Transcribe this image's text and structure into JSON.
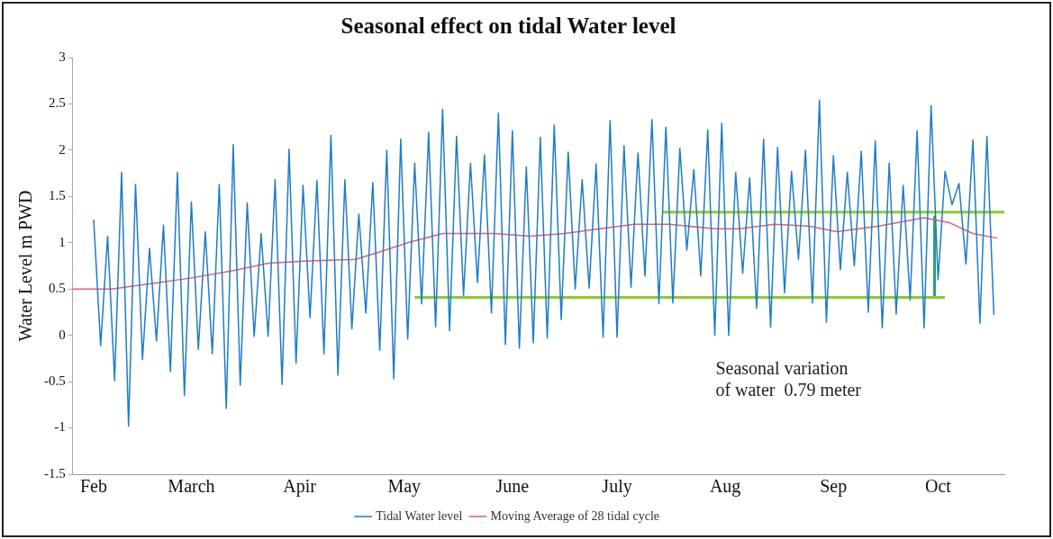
{
  "chart_data": {
    "type": "line",
    "title": "Seasonal effect on tidal Water level",
    "ylabel": "Water Level m PWD",
    "xlim": [
      "--01-26",
      "--10-20"
    ],
    "xticks": [
      {
        "value": "--02-01",
        "label": "Feb"
      },
      {
        "value": "--03-01",
        "label": "March"
      },
      {
        "value": "--04-01",
        "label": "Apir"
      },
      {
        "value": "--05-01",
        "label": "May"
      },
      {
        "value": "--06-01",
        "label": "June"
      },
      {
        "value": "--07-01",
        "label": "July"
      },
      {
        "value": "--08-01",
        "label": "Aug"
      },
      {
        "value": "--09-01",
        "label": "Sep"
      },
      {
        "value": "--10-01",
        "label": "Oct"
      }
    ],
    "ylim": [
      -1.5,
      3
    ],
    "yticks": [
      -1.5,
      -1,
      -0.5,
      0,
      0.5,
      1,
      1.5,
      2,
      2.5,
      3
    ],
    "grid": false,
    "legend": "bottom",
    "marker": "none",
    "line_style": "solid",
    "series": [
      {
        "name": "Tidal Water level",
        "color": "#1f7cc8",
        "x": [
          "--02-01",
          "--02-03",
          "--02-05",
          "--02-07",
          "--02-09",
          "--02-11",
          "--02-13",
          "--02-15",
          "--02-17",
          "--02-19",
          "--02-21",
          "--02-23",
          "--02-25",
          "--02-27",
          "--03-01",
          "--03-03",
          "--03-05",
          "--03-07",
          "--03-09",
          "--03-11",
          "--03-13",
          "--03-15",
          "--03-17",
          "--03-19",
          "--03-21",
          "--03-23",
          "--03-25",
          "--03-27",
          "--03-29",
          "--03-31",
          "--04-02",
          "--04-04",
          "--04-06",
          "--04-08",
          "--04-10",
          "--04-12",
          "--04-14",
          "--04-16",
          "--04-18",
          "--04-20",
          "--04-22",
          "--04-24",
          "--04-26",
          "--04-28",
          "--04-30",
          "--05-02",
          "--05-04",
          "--05-06",
          "--05-08",
          "--05-10",
          "--05-12",
          "--05-14",
          "--05-16",
          "--05-18",
          "--05-20",
          "--05-22",
          "--05-24",
          "--05-26",
          "--05-28",
          "--05-30",
          "--06-01",
          "--06-03",
          "--06-05",
          "--06-07",
          "--06-09",
          "--06-11",
          "--06-13",
          "--06-15",
          "--06-17",
          "--06-19",
          "--06-21",
          "--06-23",
          "--06-25",
          "--06-27",
          "--06-29",
          "--07-01",
          "--07-03",
          "--07-05",
          "--07-07",
          "--07-09",
          "--07-11",
          "--07-13",
          "--07-15",
          "--07-17",
          "--07-19",
          "--07-21",
          "--07-23",
          "--07-25",
          "--07-27",
          "--07-29",
          "--07-31",
          "--08-02",
          "--08-04",
          "--08-06",
          "--08-08",
          "--08-10",
          "--08-12",
          "--08-14",
          "--08-16",
          "--08-18",
          "--08-20",
          "--08-22",
          "--08-24",
          "--08-26",
          "--08-28",
          "--08-30",
          "--09-01",
          "--09-03",
          "--09-05",
          "--09-07",
          "--09-09",
          "--09-11",
          "--09-13",
          "--09-15",
          "--09-17",
          "--09-19",
          "--09-21",
          "--09-23",
          "--09-25",
          "--09-27",
          "--09-29",
          "--10-01",
          "--10-03",
          "--10-05",
          "--10-07",
          "--10-09",
          "--10-11",
          "--10-13",
          "--10-15",
          "--10-17"
        ],
        "values": [
          1.25,
          -0.11,
          1.07,
          -0.49,
          1.76,
          -0.98,
          1.63,
          -0.26,
          0.94,
          -0.06,
          1.19,
          -0.39,
          1.76,
          -0.65,
          1.44,
          -0.15,
          1.12,
          -0.2,
          1.63,
          -0.79,
          2.06,
          -0.54,
          1.43,
          -0.01,
          1.1,
          -0.01,
          1.68,
          -0.53,
          2.01,
          -0.3,
          1.62,
          0.19,
          1.67,
          -0.2,
          2.16,
          -0.43,
          1.68,
          0.07,
          1.31,
          0.24,
          1.65,
          -0.16,
          2.0,
          -0.47,
          2.12,
          -0.04,
          1.86,
          0.34,
          2.19,
          0.09,
          2.44,
          0.05,
          2.15,
          0.43,
          1.86,
          0.57,
          1.95,
          0.24,
          2.4,
          -0.1,
          2.21,
          -0.14,
          1.82,
          -0.08,
          2.14,
          -0.03,
          2.27,
          0.17,
          1.98,
          0.5,
          1.68,
          0.51,
          1.85,
          -0.02,
          2.32,
          -0.02,
          2.05,
          0.52,
          1.97,
          0.64,
          2.33,
          0.34,
          2.25,
          0.35,
          2.02,
          0.92,
          1.79,
          0.64,
          2.22,
          0,
          2.29,
          0,
          1.76,
          0.67,
          1.7,
          0.29,
          2.12,
          0.09,
          2.03,
          0.46,
          1.77,
          0.82,
          2.0,
          0.35,
          2.54,
          0.14,
          1.94,
          0.71,
          1.76,
          0.75,
          1.99,
          0.25,
          2.1,
          0.08,
          1.86,
          0.23,
          1.62,
          0.38,
          2.21,
          0.08,
          2.48,
          0.6,
          1.77,
          1.41,
          1.64,
          0.77,
          2.11,
          0.13,
          2.15,
          0.22
        ]
      },
      {
        "name": "Moving Average of 28 tidal cycle",
        "color": "#e0606e",
        "x": [
          "--01-26",
          "--02-06",
          "--02-16",
          "--03-01",
          "--03-13",
          "--03-23",
          "--04-02",
          "--04-17",
          "--04-24",
          "--05-02",
          "--05-12",
          "--05-27",
          "--06-06",
          "--06-16",
          "--06-26",
          "--07-06",
          "--07-16",
          "--07-29",
          "--08-05",
          "--08-15",
          "--08-25",
          "--09-02",
          "--09-14",
          "--09-27",
          "--10-04",
          "--10-11",
          "--10-18"
        ],
        "values": [
          0.5,
          0.5,
          0.55,
          0.62,
          0.7,
          0.78,
          0.8,
          0.82,
          0.9,
          1.0,
          1.1,
          1.1,
          1.07,
          1.1,
          1.15,
          1.2,
          1.2,
          1.15,
          1.15,
          1.2,
          1.18,
          1.12,
          1.18,
          1.27,
          1.22,
          1.1,
          1.05
        ]
      },
      {
        "color": "#8ccc30",
        "x": [
          "--07-14",
          "--10-20"
        ],
        "values": [
          1.33,
          1.33
        ]
      },
      {
        "color": "#8ccc30",
        "x": [
          "--05-04",
          "--10-03"
        ],
        "values": [
          0.41,
          0.41
        ]
      },
      {
        "color": "#2e9e78",
        "x": [
          "--09-30",
          "--09-30"
        ],
        "values": [
          1.28,
          0.43
        ]
      }
    ],
    "annotations": [
      "Seasonal variation\nof water  0.79 meter"
    ]
  }
}
